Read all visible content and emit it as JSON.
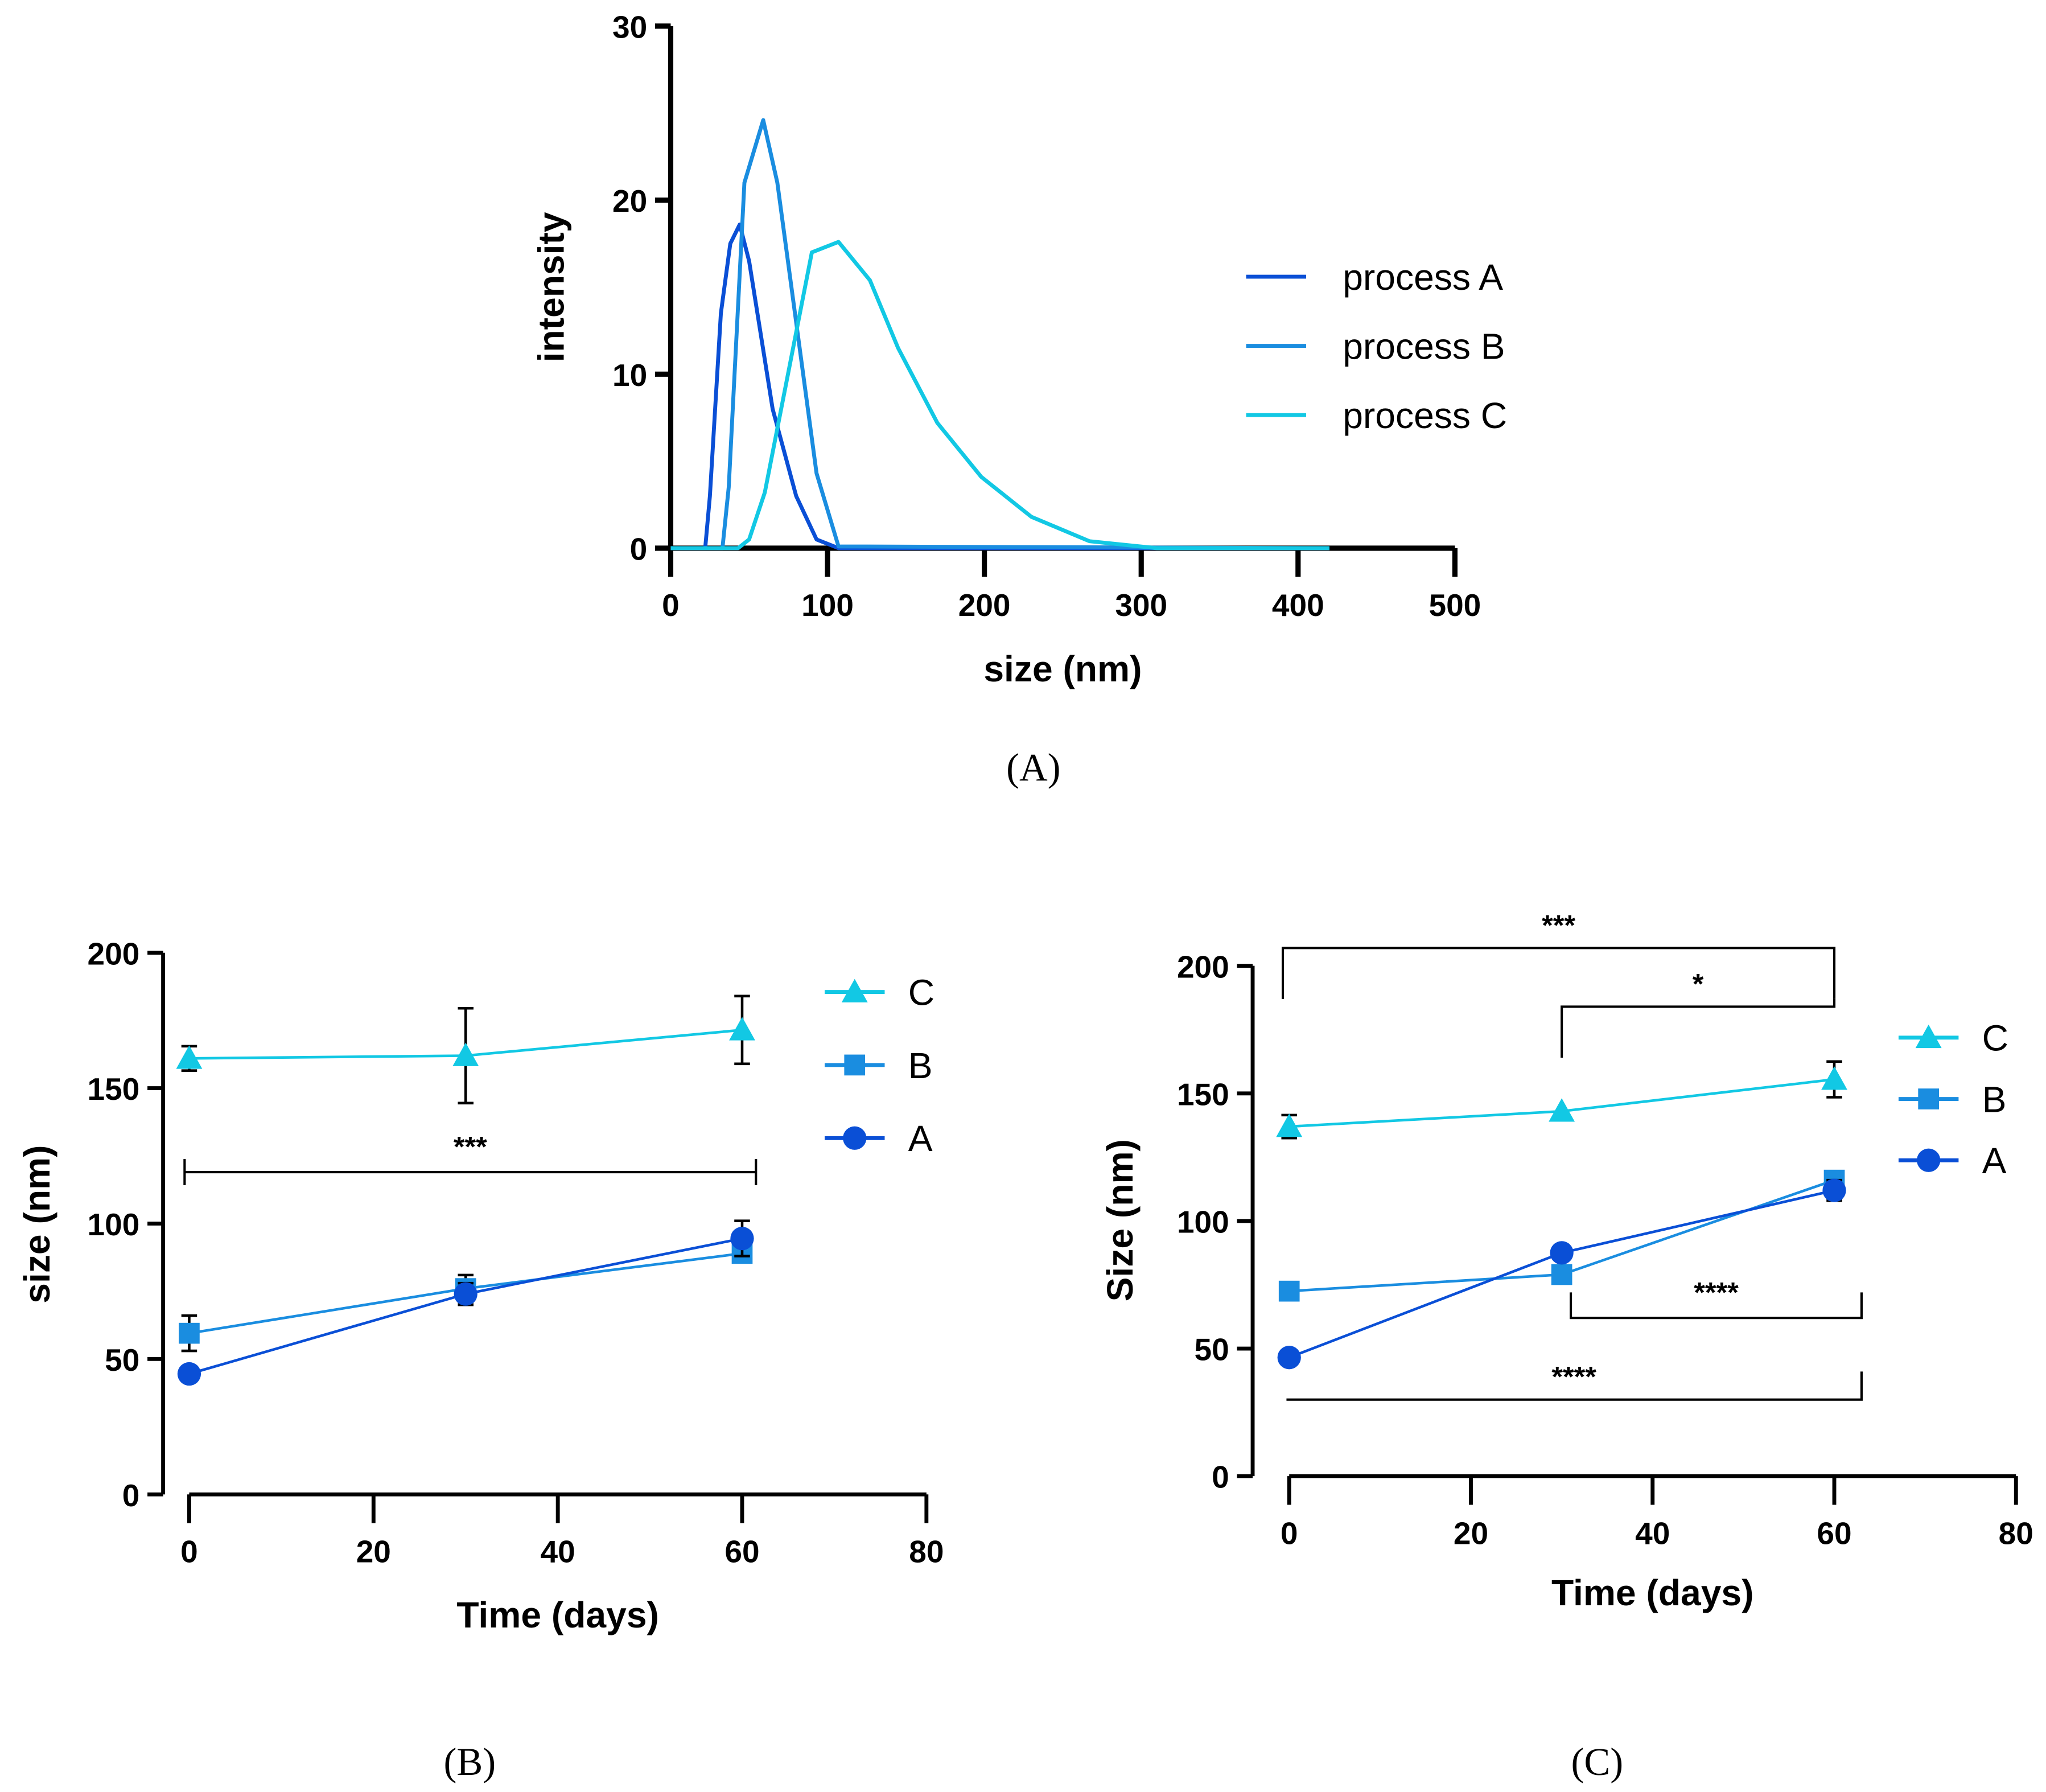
{
  "chart_data": [
    {
      "id": "A",
      "type": "line",
      "caption": "(A)",
      "xlabel": "size (nm)",
      "ylabel": "intensity",
      "xlim": [
        0,
        500
      ],
      "ylim": [
        0,
        30
      ],
      "xticks": [
        0,
        100,
        200,
        300,
        400,
        500
      ],
      "yticks": [
        0,
        10,
        20,
        30
      ],
      "legend_position": "right",
      "series": [
        {
          "name": "process A",
          "color": "#0a4fd6",
          "points": [
            [
              0,
              0
            ],
            [
              22,
              0
            ],
            [
              25,
              3
            ],
            [
              32,
              13.5
            ],
            [
              38,
              17.5
            ],
            [
              44,
              18.6
            ],
            [
              50,
              16.5
            ],
            [
              65,
              8
            ],
            [
              80,
              3
            ],
            [
              93,
              0.5
            ],
            [
              107,
              0
            ],
            [
              420,
              0
            ]
          ]
        },
        {
          "name": "process B",
          "color": "#1a8de0",
          "points": [
            [
              0,
              0
            ],
            [
              33,
              0
            ],
            [
              37,
              3.5
            ],
            [
              47,
              21
            ],
            [
              59,
              24.6
            ],
            [
              68,
              21
            ],
            [
              93,
              4.3
            ],
            [
              107,
              0.1
            ],
            [
              420,
              0
            ]
          ]
        },
        {
          "name": "process C",
          "color": "#12c8e4",
          "points": [
            [
              0,
              0
            ],
            [
              43,
              0
            ],
            [
              50,
              0.5
            ],
            [
              60,
              3.2
            ],
            [
              90,
              17
            ],
            [
              107,
              17.6
            ],
            [
              127,
              15.4
            ],
            [
              145,
              11.5
            ],
            [
              170,
              7.2
            ],
            [
              198,
              4.1
            ],
            [
              230,
              1.8
            ],
            [
              267,
              0.4
            ],
            [
              310,
              0
            ],
            [
              420,
              0
            ]
          ]
        }
      ]
    },
    {
      "id": "B",
      "type": "line",
      "caption": "(B)",
      "xlabel": "Time (days)",
      "ylabel": "size (nm)",
      "xlim": [
        0,
        80
      ],
      "ylim": [
        0,
        200
      ],
      "xticks": [
        0,
        20,
        40,
        60,
        80
      ],
      "yticks": [
        0,
        50,
        100,
        150,
        200
      ],
      "legend_position": "right",
      "series": [
        {
          "name": "C",
          "color": "#12c8e4",
          "marker": "triangle",
          "x": [
            0,
            30,
            60
          ],
          "y": [
            161,
            162,
            171.5
          ],
          "err": [
            4.5,
            17.5,
            12.5
          ]
        },
        {
          "name": "B",
          "color": "#1a8de0",
          "marker": "square",
          "x": [
            0,
            30,
            60
          ],
          "y": [
            59.5,
            76,
            89
          ],
          "err": [
            6.5,
            5,
            3
          ]
        },
        {
          "name": "A",
          "color": "#0a4fd6",
          "marker": "circle",
          "x": [
            0,
            30,
            60
          ],
          "y": [
            44.5,
            74,
            94.5
          ],
          "err": [
            1,
            4,
            6.5
          ]
        }
      ],
      "significance": [
        {
          "label": "***",
          "x1": -0.5,
          "x2": 61.5,
          "y": 119,
          "left_drop": -5,
          "right_drop": -5,
          "both": true
        }
      ]
    },
    {
      "id": "C",
      "type": "line",
      "caption": "(C)",
      "xlabel": "Time (days)",
      "ylabel": "Size (nm)",
      "xlim": [
        0,
        80
      ],
      "ylim": [
        0,
        200
      ],
      "xticks": [
        0,
        20,
        40,
        60,
        80
      ],
      "yticks": [
        0,
        50,
        100,
        150,
        200
      ],
      "legend_position": "right",
      "series": [
        {
          "name": "C",
          "color": "#12c8e4",
          "marker": "triangle",
          "x": [
            0,
            30,
            60
          ],
          "y": [
            137,
            143,
            155.5
          ],
          "err": [
            4.5,
            0,
            7
          ]
        },
        {
          "name": "B",
          "color": "#1a8de0",
          "marker": "square",
          "x": [
            0,
            30,
            60
          ],
          "y": [
            72.5,
            79,
            116
          ],
          "err": [
            0,
            0,
            0
          ]
        },
        {
          "name": "A",
          "color": "#0a4fd6",
          "marker": "circle",
          "x": [
            0,
            30,
            60
          ],
          "y": [
            46.5,
            87.5,
            112
          ],
          "err": [
            0,
            0,
            4
          ]
        }
      ],
      "significance": [
        {
          "label": "***",
          "x1": -0.7,
          "x2": 60,
          "y": 207,
          "ly1": 187,
          "ly2": 187
        },
        {
          "label": "*",
          "x1": 30,
          "x2": 60,
          "y": 184,
          "ly1": 164,
          "ly2": 187
        },
        {
          "label": "****",
          "x1": 31,
          "x2": 63,
          "y": 62,
          "ly1": 72,
          "ly2": 72
        },
        {
          "label": "****",
          "x1": -0.3,
          "x2": 63,
          "y": 30,
          "ly1": 30,
          "ly2": 41
        }
      ]
    }
  ]
}
